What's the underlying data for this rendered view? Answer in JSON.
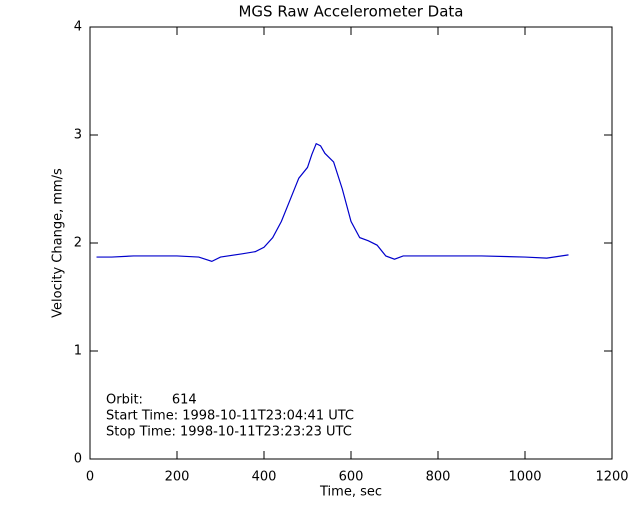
{
  "chart_data": {
    "type": "line",
    "title": "MGS Raw Accelerometer Data",
    "xlabel": "Time, sec",
    "ylabel": "Velocity Change, mm/s",
    "annotations": [
      "Orbit:       614",
      "Start Time: 1998-10-11T23:04:41 UTC",
      "Stop Time: 1998-10-11T23:23:23 UTC"
    ],
    "x": [
      15,
      50,
      100,
      150,
      200,
      250,
      280,
      300,
      350,
      380,
      400,
      420,
      440,
      460,
      480,
      500,
      510,
      520,
      530,
      540,
      560,
      580,
      600,
      620,
      640,
      660,
      680,
      700,
      720,
      800,
      900,
      1000,
      1050,
      1100
    ],
    "series": [
      {
        "name": "Velocity Change",
        "color": "#0000cc",
        "values": [
          1.87,
          1.87,
          1.88,
          1.88,
          1.88,
          1.87,
          1.83,
          1.87,
          1.9,
          1.92,
          1.96,
          2.05,
          2.2,
          2.4,
          2.6,
          2.7,
          2.82,
          2.92,
          2.9,
          2.83,
          2.75,
          2.5,
          2.2,
          2.05,
          2.02,
          1.98,
          1.88,
          1.85,
          1.88,
          1.88,
          1.88,
          1.87,
          1.86,
          1.89
        ]
      }
    ],
    "xlim": [
      0,
      1200
    ],
    "xticks": [
      0,
      200,
      400,
      600,
      800,
      1000,
      1200
    ],
    "ylim": [
      0,
      4
    ],
    "yticks": [
      0,
      1,
      2,
      3,
      4
    ]
  }
}
